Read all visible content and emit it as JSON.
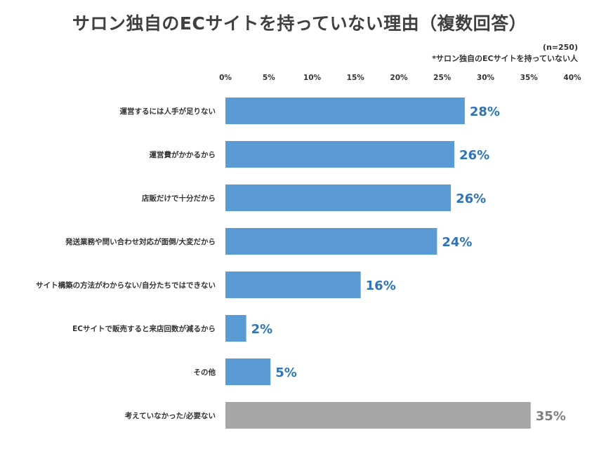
{
  "title": "サロン独自のECサイトを持っていない理由（複数回答）",
  "sample_note": "(n=250)",
  "target_note": "*サロン独自のECサイトを持っていない人",
  "colors": {
    "bar": "#5b9bd5",
    "bar_other": "#a6a6a6",
    "label": "#2e75b6",
    "label_other": "#7f7f7f"
  },
  "chart_data": {
    "type": "bar",
    "orientation": "horizontal",
    "title": "サロン独自のECサイトを持っていない理由（複数回答）",
    "categories": [
      "運営するには人手が足りない",
      "運営費がかかるから",
      "店販だけで十分だから",
      "発送業務や問い合わせ対応が面倒/大変だから",
      "サイト構築の方法がわからない/自分たちではできない",
      "ECサイトで販売すると来店回数が減るから",
      "その他",
      "考えていなかった/必要ない"
    ],
    "values": [
      27.6,
      26.4,
      26.0,
      24.4,
      15.6,
      2.4,
      5.2,
      35.2
    ],
    "data_labels": [
      "28%",
      "26%",
      "26%",
      "24%",
      "16%",
      "2%",
      "5%",
      "35%"
    ],
    "x_ticks": [
      "0%",
      "5%",
      "10%",
      "15%",
      "20%",
      "25%",
      "30%",
      "35%",
      "40%"
    ],
    "xlim": [
      0,
      40
    ],
    "axis_position": "top",
    "grid": false,
    "legend": "none"
  }
}
